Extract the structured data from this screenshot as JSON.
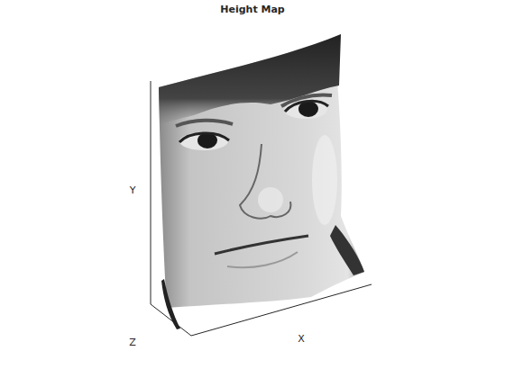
{
  "chart_data": {
    "type": "surface",
    "title": "Height Map",
    "x_label": "X",
    "y_label": "Y",
    "z_label": "Z",
    "tick_labels": false,
    "color": "#c4c4c4"
  }
}
